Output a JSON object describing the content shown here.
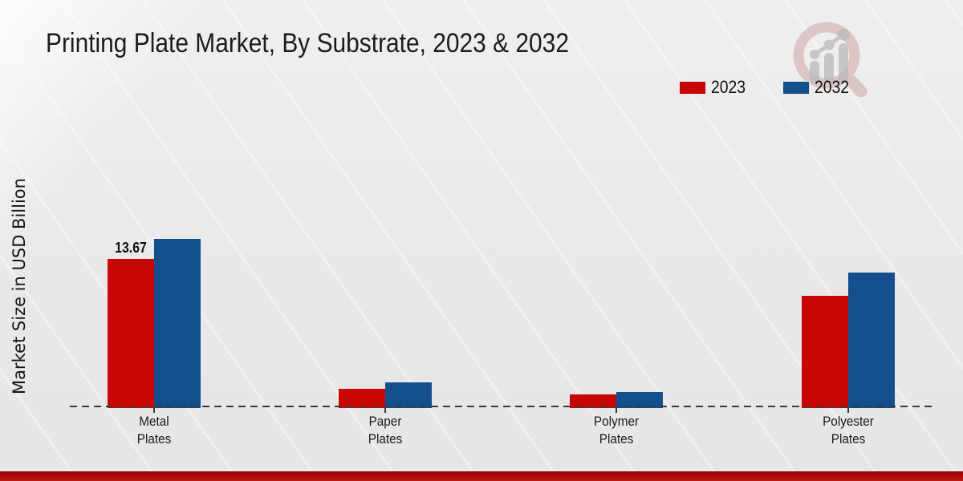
{
  "header": {
    "title": "Printing Plate Market, By Substrate, 2023 & 2032"
  },
  "chart_data": {
    "type": "bar",
    "title": "Printing Plate Market, By Substrate, 2023 & 2032",
    "xlabel": "",
    "ylabel": "Market Size in USD Billion",
    "categories": [
      "Metal Plates",
      "Paper Plates",
      "Polymer Plates",
      "Polyester Plates"
    ],
    "series": [
      {
        "name": "2023",
        "color": "#c90606",
        "values": [
          13.67,
          1.8,
          1.25,
          10.3
        ]
      },
      {
        "name": "2032",
        "color": "#134f8c",
        "values": [
          15.5,
          2.35,
          1.45,
          12.45
        ]
      }
    ],
    "value_labels": [
      {
        "category_index": 0,
        "series_index": 0,
        "text": "13.67"
      }
    ],
    "ylim": [
      0,
      16
    ],
    "grid": false,
    "legend_position": "top-right",
    "baseline_style": "dashed"
  },
  "branding": {
    "logo_icon": "magnifier-growth-chart-watermark",
    "footer_bar_color": "#b80505"
  }
}
